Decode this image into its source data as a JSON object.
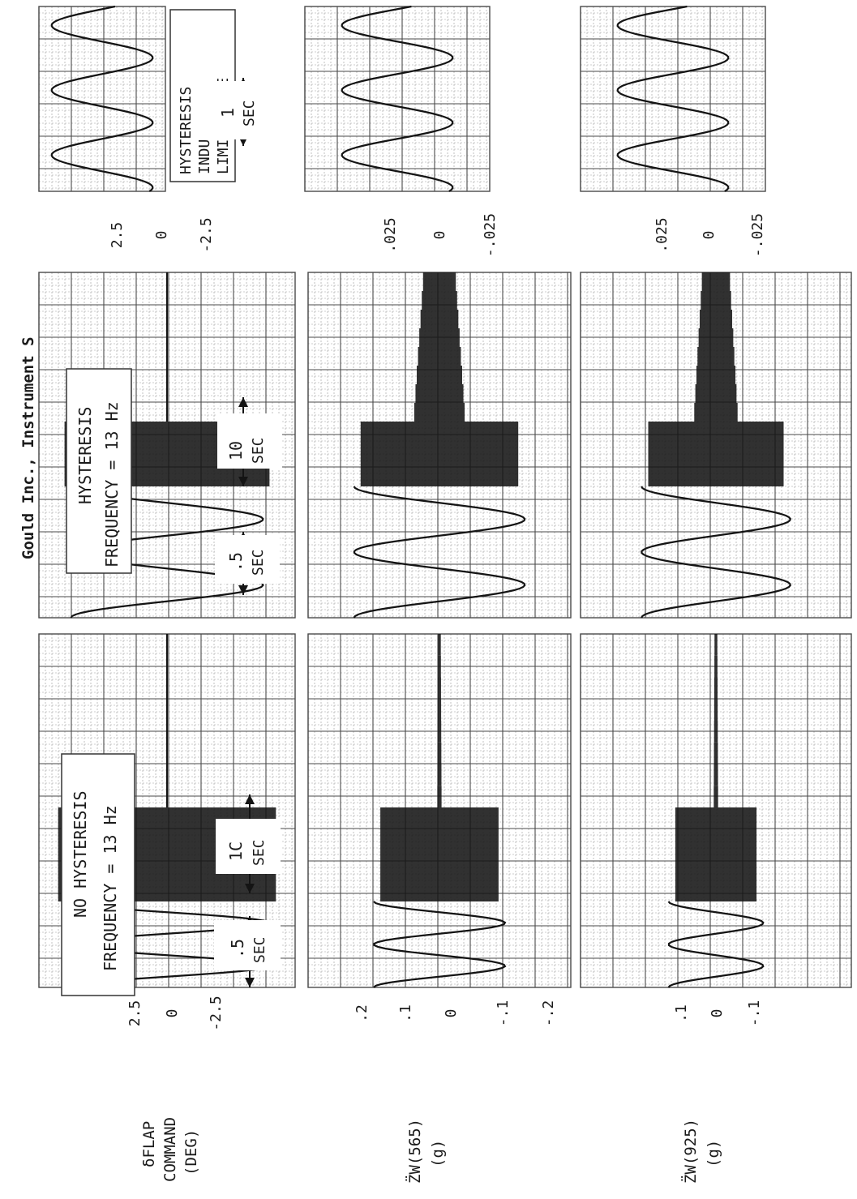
{
  "chart_data": [
    {
      "type": "line",
      "title": "HYSTERESIS INDUCED LIMIT CYCLE",
      "time_marker": {
        "value": "1",
        "unit": "SEC"
      },
      "strips": [
        {
          "ticks": [
            "2.5",
            "0",
            "-2.5"
          ],
          "ylim": [
            -2.5,
            2.5
          ]
        },
        {
          "ticks": [
            ".025",
            "0",
            "-.025"
          ],
          "ylim": [
            -0.025,
            0.025
          ]
        },
        {
          "ticks": [
            ".025",
            "0",
            "-.025"
          ],
          "ylim": [
            -0.025,
            0.025
          ]
        }
      ],
      "signal": "sustained sine oscillation, ~1.3 cycles per second",
      "series": [
        {
          "amplitude_fraction": 0.8
        },
        {
          "amplitude_fraction": 0.6
        },
        {
          "amplitude_fraction": 0.6
        }
      ]
    },
    {
      "type": "line",
      "header": "Gould Inc., Instrument S",
      "annotation_lines": [
        "HYSTERESIS",
        "FREQUENCY = 13 Hz"
      ],
      "time_markers": [
        {
          "value": ".5",
          "unit": "SEC"
        },
        {
          "value": "10",
          "unit": "SEC"
        }
      ],
      "segments": [
        "two slow sine cycles",
        "13 Hz forced oscillation",
        "residual vibration"
      ],
      "series": [
        {
          "slow_amp": 0.75,
          "burst_amp": 0.8,
          "tail_amp": 0.0
        },
        {
          "slow_amp": 0.65,
          "burst_amp": 0.6,
          "tail_amp": 0.12
        },
        {
          "slow_amp": 0.55,
          "burst_amp": 0.5,
          "tail_amp": 0.1
        }
      ]
    },
    {
      "type": "line",
      "annotation_lines": [
        "NO HYSTERESIS",
        "FREQUENCY = 13 Hz"
      ],
      "time_markers": [
        {
          "value": ".5",
          "unit": "SEC"
        },
        {
          "value": "1C",
          "unit": "SEC"
        }
      ],
      "segments": [
        "two slow sine cycles",
        "13 Hz forced oscillation",
        "no residual"
      ],
      "strips": [
        {
          "ticks": [
            "2.5",
            "0",
            "-2.5"
          ],
          "ylim": [
            -2.5,
            2.5
          ]
        },
        {
          "ticks": [
            ".2",
            ".1",
            "0",
            "-.1",
            "-.2"
          ],
          "ylim": [
            -0.2,
            0.2
          ]
        },
        {
          "ticks": [
            ".1",
            "0",
            "-.1"
          ],
          "ylim": [
            -0.1,
            0.1
          ]
        }
      ],
      "series": [
        {
          "slow_amp": 0.8,
          "burst_amp": 0.85,
          "tail_amp": 0.0
        },
        {
          "slow_amp": 0.5,
          "burst_amp": 0.45,
          "tail_amp": 0.01
        },
        {
          "slow_amp": 0.35,
          "burst_amp": 0.3,
          "tail_amp": 0.01
        }
      ]
    }
  ],
  "channel_labels": [
    {
      "lines": [
        "δFLAP",
        "COMMAND",
        "(DEG)"
      ]
    },
    {
      "lines": [
        "Z̈W(565)",
        "(g)"
      ]
    },
    {
      "lines": [
        "Z̈W(925)",
        "(g)"
      ]
    }
  ],
  "colors": {
    "grid_minor": "#9a9a9a",
    "grid_major": "#4a4a4a",
    "trace": "#141414",
    "paper": "#ffffff"
  }
}
